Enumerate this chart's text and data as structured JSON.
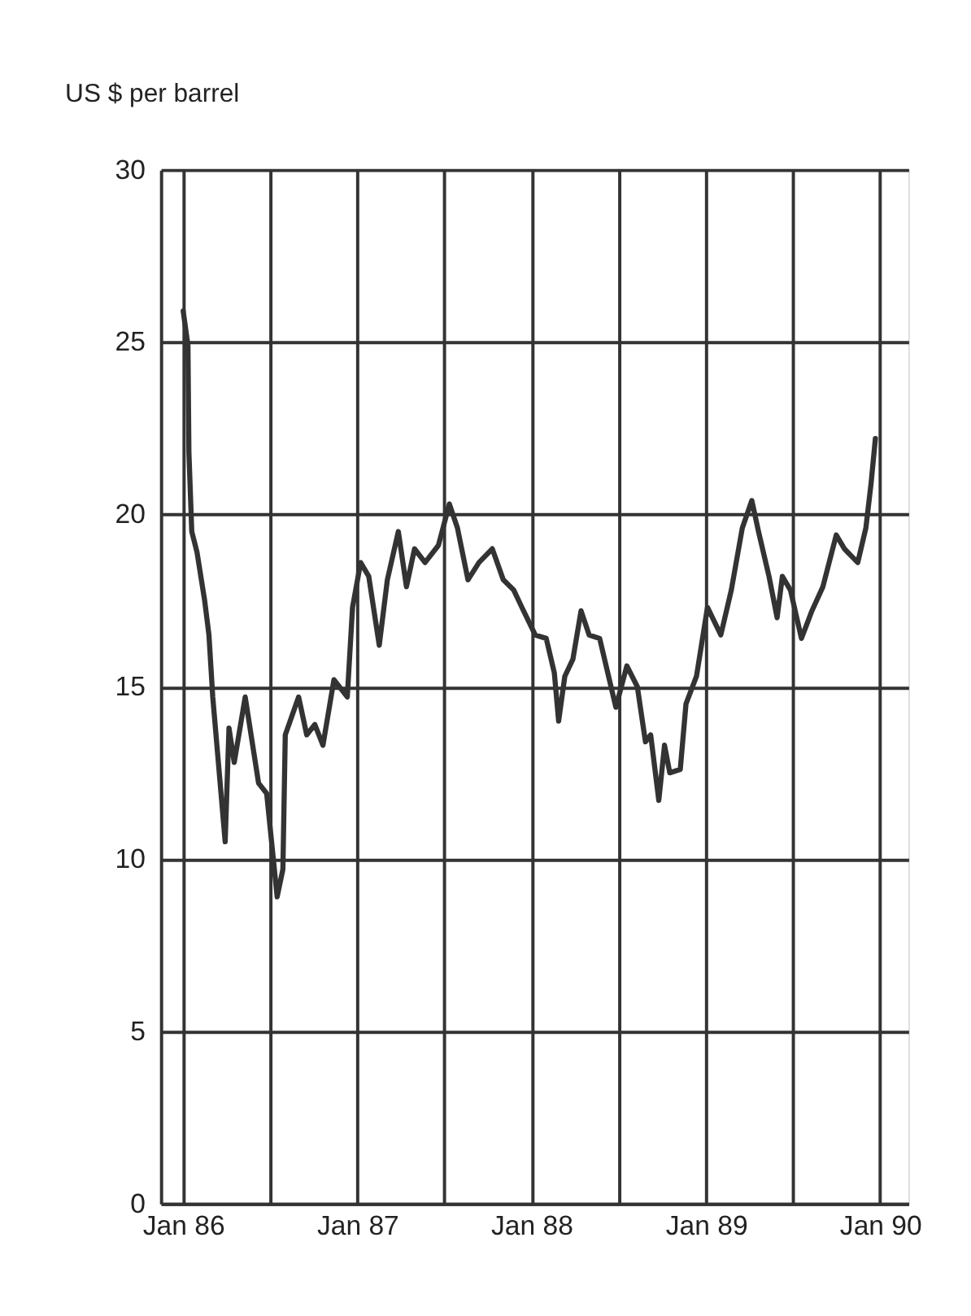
{
  "chart_data": {
    "type": "line",
    "ylabel": "US $ per barrel",
    "x": [
      "1986-01-01",
      "1986-01-11",
      "1986-01-13",
      "1986-01-19",
      "1986-01-30",
      "1986-02-15",
      "1986-02-24",
      "1986-03-04",
      "1986-03-30",
      "1986-04-07",
      "1986-04-18",
      "1986-05-11",
      "1986-06-08",
      "1986-06-25",
      "1986-07-17",
      "1986-07-29",
      "1986-08-03",
      "1986-08-31",
      "1986-09-17",
      "1986-10-04",
      "1986-10-21",
      "1986-11-13",
      "1986-12-11",
      "1986-12-22",
      "1987-01-08",
      "1987-01-25",
      "1987-02-16",
      "1987-03-05",
      "1987-03-28",
      "1987-04-14",
      "1987-05-01",
      "1987-05-23",
      "1987-06-20",
      "1987-07-13",
      "1987-07-30",
      "1987-08-21",
      "1987-09-13",
      "1987-10-11",
      "1987-11-03",
      "1987-11-25",
      "1987-12-12",
      "1988-01-09",
      "1988-02-01",
      "1988-02-18",
      "1988-02-27",
      "1988-03-11",
      "1988-03-28",
      "1988-04-14",
      "1988-05-01",
      "1988-05-23",
      "1988-06-09",
      "1988-06-26",
      "1988-07-19",
      "1988-08-10",
      "1988-08-27",
      "1988-09-07",
      "1988-09-24",
      "1988-10-06",
      "1988-10-17",
      "1988-11-08",
      "1988-11-20",
      "1988-12-12",
      "1989-01-04",
      "1989-02-01",
      "1989-02-23",
      "1989-03-18",
      "1989-04-07",
      "1989-04-21",
      "1989-05-13",
      "1989-05-30",
      "1989-06-10",
      "1989-06-27",
      "1989-07-20",
      "1989-08-11",
      "1989-09-03",
      "1989-10-01",
      "1989-10-18",
      "1989-11-15",
      "1989-12-02",
      "1989-12-13",
      "1989-12-22"
    ],
    "series": [
      {
        "color": "#333333",
        "values": [
          25.9,
          24.9,
          21.8,
          19.5,
          18.9,
          17.5,
          16.5,
          14.7,
          10.5,
          13.8,
          12.8,
          14.7,
          12.2,
          11.9,
          8.9,
          9.7,
          13.6,
          14.7,
          13.6,
          13.9,
          13.3,
          15.2,
          14.7,
          17.3,
          18.6,
          18.2,
          16.2,
          18.1,
          19.5,
          17.9,
          19.0,
          18.6,
          19.1,
          20.3,
          19.6,
          18.1,
          18.6,
          19.0,
          18.1,
          17.8,
          17.3,
          16.5,
          16.4,
          15.4,
          14.0,
          15.3,
          15.8,
          17.2,
          16.5,
          16.4,
          15.4,
          14.4,
          15.6,
          15.0,
          13.4,
          13.6,
          11.7,
          13.3,
          12.5,
          12.6,
          14.5,
          15.3,
          17.3,
          16.5,
          17.8,
          19.6,
          20.4,
          19.5,
          18.2,
          17.0,
          18.2,
          17.8,
          16.4,
          17.2,
          17.9,
          19.4,
          19.0,
          18.6,
          19.6,
          20.9,
          22.2
        ]
      }
    ],
    "xlim": [
      "1985-11-15",
      "1990-03-01"
    ],
    "xticks": [
      {
        "value": "1986-01-01",
        "label": "Jan 86"
      },
      {
        "value": "1986-07-01",
        "label": null
      },
      {
        "value": "1987-01-01",
        "label": "Jan 87"
      },
      {
        "value": "1987-07-01",
        "label": null
      },
      {
        "value": "1988-01-01",
        "label": "Jan 88"
      },
      {
        "value": "1988-07-01",
        "label": null
      },
      {
        "value": "1989-01-01",
        "label": "Jan 89"
      },
      {
        "value": "1989-07-01",
        "label": null
      },
      {
        "value": "1990-01-01",
        "label": "Jan 90"
      }
    ],
    "ylim": [
      0,
      30
    ],
    "yticks": [
      0,
      5,
      10,
      15,
      20,
      25,
      30
    ],
    "grid": true,
    "marker": "none",
    "line_style": "solid"
  }
}
